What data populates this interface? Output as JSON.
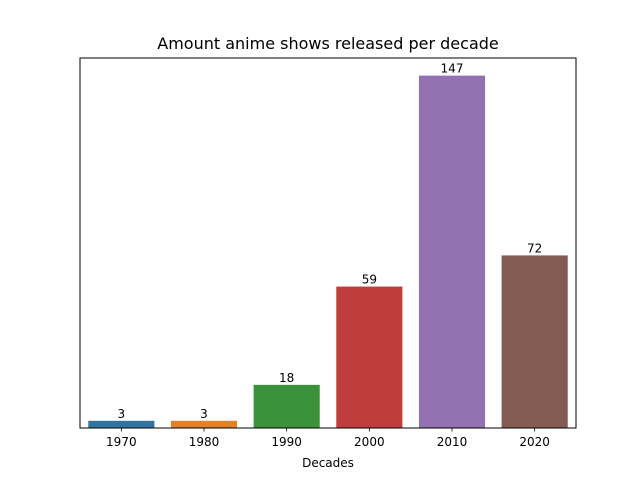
{
  "chart_data": {
    "type": "bar",
    "title": "Amount anime shows released per decade",
    "xlabel": "Decades",
    "ylabel": "",
    "categories": [
      "1970",
      "1980",
      "1990",
      "2000",
      "2010",
      "2020"
    ],
    "values": [
      3,
      3,
      18,
      59,
      147,
      72
    ],
    "data_labels": [
      "3",
      "3",
      "18",
      "59",
      "147",
      "72"
    ],
    "colors": [
      "#3274a1",
      "#e1812c",
      "#3a923a",
      "#c03d3e",
      "#9372b2",
      "#845b53"
    ],
    "ylim": [
      0,
      154.35
    ],
    "y_ticks_shown": false,
    "grid": false,
    "legend": "none"
  }
}
